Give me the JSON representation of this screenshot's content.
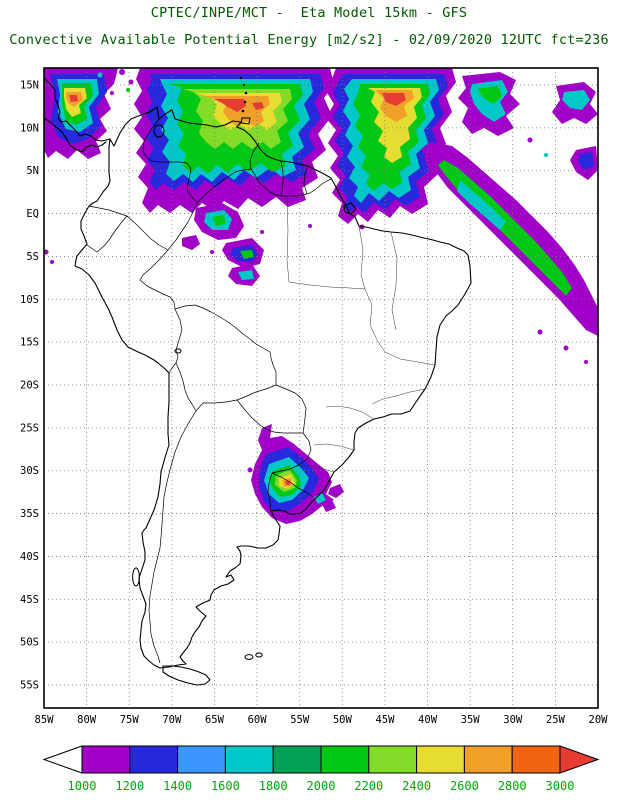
{
  "header": {
    "line1": "CPTEC/INPE/MCT -  Eta Model 15km - GFS",
    "line2": "Convective Available Potential Energy [m2/s2] - 02/09/2020 12UTC fct=236"
  },
  "map": {
    "lat_ticks": [
      "15N",
      "10N",
      "5N",
      "EQ",
      "5S",
      "10S",
      "15S",
      "20S",
      "25S",
      "30S",
      "35S",
      "40S",
      "45S",
      "50S",
      "55S"
    ],
    "lon_ticks": [
      "85W",
      "80W",
      "75W",
      "70W",
      "65W",
      "60W",
      "55W",
      "50W",
      "45W",
      "40W",
      "35W",
      "30W",
      "25W",
      "20W"
    ]
  },
  "colorbar": {
    "ticks": [
      "1000",
      "1200",
      "1400",
      "1600",
      "1800",
      "2000",
      "2200",
      "2400",
      "2600",
      "2800",
      "3000"
    ],
    "palette": [
      "#a000c8",
      "#2828dc",
      "#3c96ff",
      "#00c8c8",
      "#00a055",
      "#00c814",
      "#82dc28",
      "#e6dc32",
      "#f0a028",
      "#f06414",
      "#e63c32"
    ],
    "under_range_color": "#ffffff"
  },
  "chart_data": {
    "type": "heatmap",
    "title": "Convective Available Potential Energy [m2/s2]",
    "model": "CPTEC/INPE/MCT - Eta Model 15km - GFS",
    "valid": "02/09/2020 12UTC fct=236",
    "units": "m2/s2",
    "scale_min": 1000,
    "scale_max": 3000,
    "scale_step": 200,
    "lon_labels_deg_w": [
      85,
      80,
      75,
      70,
      65,
      60,
      55,
      50,
      45,
      40,
      35,
      30,
      25,
      20
    ],
    "lat_labels": [
      "15N",
      "10N",
      "5N",
      "EQ",
      "5S",
      "10S",
      "15S",
      "20S",
      "25S",
      "30S",
      "35S",
      "40S",
      "45S",
      "50S",
      "55S"
    ],
    "regions": [
      {
        "area": "Caribbean, northern Venezuela/Colombia, Guianas and tropical Atlantic (15N-2N)",
        "cape_range_m2s2": [
          1000,
          3000
        ],
        "peak_note": "cores above 3000 near 12N-15N"
      },
      {
        "area": "Central America / eastern Pacific top-left corner (15N-8N, 85W-77W)",
        "cape_range_m2s2": [
          1000,
          3000
        ]
      },
      {
        "area": "Northwest Amazon near the equator (EQ-7S, 67W-58W)",
        "cape_range_m2s2": [
          1000,
          2200
        ]
      },
      {
        "area": "Uruguay / northeastern Argentina (28S-35S, 62W-53W)",
        "cape_range_m2s2": [
          1000,
          3000
        ],
        "peak_note": "small core near 2800-3000 around 33S 56W"
      },
      {
        "area": "Subtropical Atlantic diagonal band (5S-15S, 40W-20W)",
        "cape_range_m2s2": [
          1000,
          2200
        ]
      }
    ]
  }
}
